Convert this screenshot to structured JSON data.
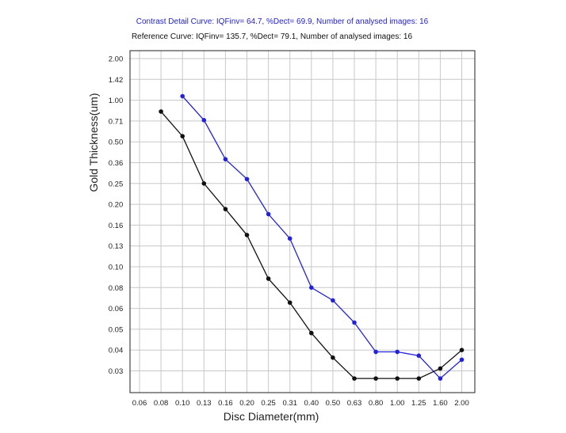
{
  "chart_data": {
    "type": "line",
    "title_lines": [
      {
        "text": "Contrast Detail Curve: IQFinv= 64.7, %Dect= 69.9, Number of analysed images: 16",
        "color": "#2222cc"
      },
      {
        "text": "Reference Curve: IQFinv= 135.7, %Dect= 79.1, Number of analysed images: 16",
        "color": "#111111"
      }
    ],
    "xlabel": "Disc Diameter(mm)",
    "ylabel": "Gold Thickness(um)",
    "x_ticks": [
      "0.06",
      "0.08",
      "0.10",
      "0.13",
      "0.16",
      "0.20",
      "0.25",
      "0.31",
      "0.40",
      "0.50",
      "0.63",
      "0.80",
      "1.00",
      "1.25",
      "1.60",
      "2.00"
    ],
    "y_ticks": [
      "2.00",
      "1.42",
      "1.00",
      "0.71",
      "0.50",
      "0.36",
      "0.25",
      "0.20",
      "0.16",
      "0.13",
      "0.10",
      "0.08",
      "0.06",
      "0.05",
      "0.04",
      "0.03"
    ],
    "grid": true,
    "series": [
      {
        "color": "#2222dd",
        "points": [
          {
            "x": "0.10",
            "y": 1.07
          },
          {
            "x": "0.13",
            "y": 0.72
          },
          {
            "x": "0.16",
            "y": 0.38
          },
          {
            "x": "0.20",
            "y": 0.27
          },
          {
            "x": "0.25",
            "y": 0.18
          },
          {
            "x": "0.31",
            "y": 0.14
          },
          {
            "x": "0.40",
            "y": 0.08
          },
          {
            "x": "0.50",
            "y": 0.067
          },
          {
            "x": "0.63",
            "y": 0.053
          },
          {
            "x": "0.80",
            "y": 0.039
          },
          {
            "x": "1.00",
            "y": 0.039
          },
          {
            "x": "1.25",
            "y": 0.037
          },
          {
            "x": "1.60",
            "y": 0.027
          },
          {
            "x": "2.00",
            "y": 0.035
          }
        ]
      },
      {
        "color": "#111111",
        "points": [
          {
            "x": "0.08",
            "y": 0.83
          },
          {
            "x": "0.10",
            "y": 0.55
          },
          {
            "x": "0.13",
            "y": 0.25
          },
          {
            "x": "0.16",
            "y": 0.19
          },
          {
            "x": "0.20",
            "y": 0.145
          },
          {
            "x": "0.25",
            "y": 0.088
          },
          {
            "x": "0.31",
            "y": 0.065
          },
          {
            "x": "0.40",
            "y": 0.048
          },
          {
            "x": "0.50",
            "y": 0.036
          },
          {
            "x": "0.63",
            "y": 0.027
          },
          {
            "x": "0.80",
            "y": 0.027
          },
          {
            "x": "1.00",
            "y": 0.027
          },
          {
            "x": "1.25",
            "y": 0.027
          },
          {
            "x": "1.60",
            "y": 0.031
          },
          {
            "x": "2.00",
            "y": 0.04
          }
        ]
      }
    ]
  }
}
